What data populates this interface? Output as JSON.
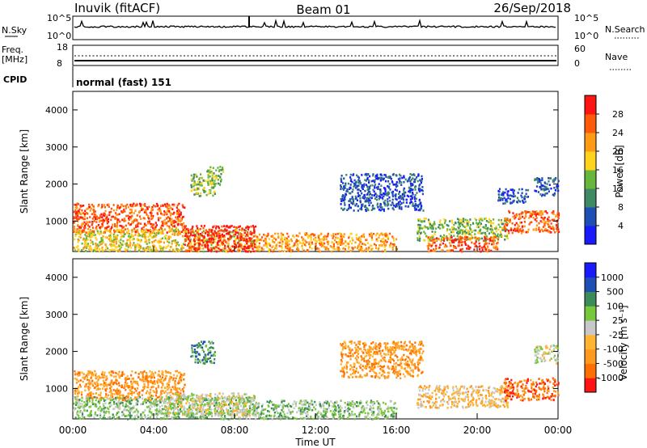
{
  "header": {
    "station": "Inuvik (fitACF)",
    "beam": "Beam 01",
    "date": "26/Sep/2018"
  },
  "panels": {
    "nsky_label": "N.Sky",
    "nsky_ticks": [
      "10^5",
      "10^0"
    ],
    "nsearch_label": "N.Search",
    "nsearch_ticks": [
      "10^5",
      "10^0"
    ],
    "freq_label_1": "Freq.",
    "freq_label_2": "[MHz]",
    "freq_ticks": [
      "18",
      "8"
    ],
    "nave_label": "Nave",
    "nave_ticks": [
      "60",
      "0"
    ],
    "cpid_label": "CPID",
    "cpid_value": "normal (fast) 151"
  },
  "x_axis": {
    "label": "Time UT",
    "ticks": [
      "00:00",
      "04:00",
      "08:00",
      "12:00",
      "16:00",
      "20:00",
      "00:00"
    ]
  },
  "colors": {
    "power": [
      "#1a1aff",
      "#1f4fb4",
      "#3f8a64",
      "#69b63c",
      "#ffd21e",
      "#ff9a14",
      "#ff5a0a",
      "#ff1414"
    ],
    "velocity": [
      "#ff1414",
      "#ff6e00",
      "#ff9a1e",
      "#ffb432",
      "#c8c8c8",
      "#78c83c",
      "#3c8c5a",
      "#1f4fb4",
      "#1a1aff"
    ]
  },
  "chart_data": [
    {
      "type": "heatmap",
      "name": "power",
      "xlabel": "",
      "ylabel": "Slant Range [km]",
      "x_range_hours": [
        0,
        24
      ],
      "ylim": [
        180,
        4500
      ],
      "yticks": [
        1000,
        2000,
        3000,
        4000
      ],
      "colorbar": {
        "label": "Power [dB]",
        "ticks": [
          "28",
          "24",
          "20",
          "16",
          "12",
          "8",
          "4"
        ],
        "range": [
          0,
          32
        ]
      },
      "regions": [
        {
          "t": [
            0.0,
            5.5
          ],
          "r": [
            700,
            1500
          ],
          "level": 6
        },
        {
          "t": [
            0.0,
            9.0
          ],
          "r": [
            200,
            800
          ],
          "level": 4
        },
        {
          "t": [
            5.5,
            9.0
          ],
          "r": [
            200,
            900
          ],
          "level": 7
        },
        {
          "t": [
            5.8,
            7.0
          ],
          "r": [
            1700,
            2300
          ],
          "level": 3
        },
        {
          "t": [
            6.6,
            7.4
          ],
          "r": [
            2000,
            2500
          ],
          "level": 3
        },
        {
          "t": [
            9.0,
            16.0
          ],
          "r": [
            200,
            700
          ],
          "level": 5
        },
        {
          "t": [
            13.2,
            17.3
          ],
          "r": [
            1300,
            2300
          ],
          "level": 1
        },
        {
          "t": [
            17.0,
            21.5
          ],
          "r": [
            500,
            1100
          ],
          "level": 3
        },
        {
          "t": [
            17.5,
            21.0
          ],
          "r": [
            200,
            600
          ],
          "level": 6
        },
        {
          "t": [
            21.3,
            24.0
          ],
          "r": [
            700,
            1300
          ],
          "level": 6
        },
        {
          "t": [
            21.0,
            22.5
          ],
          "r": [
            1500,
            1900
          ],
          "level": 1
        },
        {
          "t": [
            22.8,
            24.0
          ],
          "r": [
            1700,
            2200
          ],
          "level": 1
        }
      ]
    },
    {
      "type": "heatmap",
      "name": "velocity",
      "xlabel": "Time UT",
      "ylabel": "Slant Range [km]",
      "x_range_hours": [
        0,
        24
      ],
      "ylim": [
        180,
        4500
      ],
      "yticks": [
        1000,
        2000,
        3000,
        4000
      ],
      "colorbar": {
        "label": "Velocity [m s⁻¹]",
        "ticks": [
          "1000",
          "500",
          "100",
          "25",
          "-25",
          "-100",
          "-500",
          "-1000"
        ],
        "range": [
          -1500,
          1500
        ]
      },
      "regions": [
        {
          "t": [
            0.0,
            5.5
          ],
          "r": [
            700,
            1500
          ],
          "level": 2
        },
        {
          "t": [
            0.0,
            9.0
          ],
          "r": [
            200,
            800
          ],
          "level": 5
        },
        {
          "t": [
            4.5,
            9.0
          ],
          "r": [
            300,
            900
          ],
          "level": 4
        },
        {
          "t": [
            5.8,
            7.0
          ],
          "r": [
            1700,
            2300
          ],
          "level": 6
        },
        {
          "t": [
            9.0,
            16.0
          ],
          "r": [
            200,
            700
          ],
          "level": 5
        },
        {
          "t": [
            13.2,
            17.3
          ],
          "r": [
            1300,
            2300
          ],
          "level": 2
        },
        {
          "t": [
            17.0,
            21.5
          ],
          "r": [
            500,
            1100
          ],
          "level": 3
        },
        {
          "t": [
            21.3,
            24.0
          ],
          "r": [
            700,
            1300
          ],
          "level": 1
        },
        {
          "t": [
            22.8,
            24.0
          ],
          "r": [
            1700,
            2200
          ],
          "level": 4
        }
      ]
    }
  ]
}
